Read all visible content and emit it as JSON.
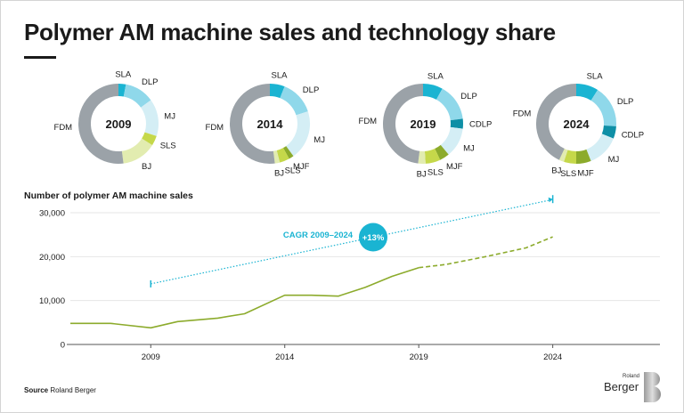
{
  "title": "Polymer AM machine sales and technology share",
  "source_label": "Source",
  "source_text": "Roland Berger",
  "logo": {
    "small": "Roland",
    "large": "Berger",
    "mark": "B"
  },
  "colors": {
    "SLA": "#1ab4d2",
    "DLP": "#8fd8ea",
    "CDLP": "#0e8fa6",
    "MJ": "#d4eef5",
    "MJF": "#8cab2c",
    "SLS": "#c5d84a",
    "BJ": "#e2ecb0",
    "FDM": "#9ba2a8",
    "line": "#8cab2c",
    "cagr": "#1ab4d2",
    "axis": "#555555",
    "grid": "#e6e6e6"
  },
  "chart_data": [
    {
      "type": "pie",
      "label": "2009",
      "segments": [
        {
          "name": "SLA",
          "value": 3
        },
        {
          "name": "DLP",
          "value": 12
        },
        {
          "name": "MJ",
          "value": 15
        },
        {
          "name": "SLS",
          "value": 4
        },
        {
          "name": "BJ",
          "value": 14
        },
        {
          "name": "FDM",
          "value": 52
        }
      ]
    },
    {
      "type": "pie",
      "label": "2014",
      "segments": [
        {
          "name": "SLA",
          "value": 6
        },
        {
          "name": "DLP",
          "value": 14
        },
        {
          "name": "MJ",
          "value": 20
        },
        {
          "name": "MJF",
          "value": 2
        },
        {
          "name": "SLS",
          "value": 4
        },
        {
          "name": "BJ",
          "value": 2
        },
        {
          "name": "FDM",
          "value": 52
        }
      ]
    },
    {
      "type": "pie",
      "label": "2019",
      "segments": [
        {
          "name": "SLA",
          "value": 8
        },
        {
          "name": "DLP",
          "value": 15
        },
        {
          "name": "CDLP",
          "value": 4
        },
        {
          "name": "MJ",
          "value": 12
        },
        {
          "name": "MJF",
          "value": 4
        },
        {
          "name": "SLS",
          "value": 6
        },
        {
          "name": "BJ",
          "value": 3
        },
        {
          "name": "FDM",
          "value": 48
        }
      ]
    },
    {
      "type": "pie",
      "label": "2024",
      "segments": [
        {
          "name": "SLA",
          "value": 9
        },
        {
          "name": "DLP",
          "value": 17
        },
        {
          "name": "CDLP",
          "value": 5
        },
        {
          "name": "MJ",
          "value": 13
        },
        {
          "name": "MJF",
          "value": 6
        },
        {
          "name": "SLS",
          "value": 5
        },
        {
          "name": "BJ",
          "value": 2
        },
        {
          "name": "FDM",
          "value": 43
        }
      ]
    },
    {
      "type": "line",
      "title": "Number of polymer AM machine sales",
      "xlim": [
        2006,
        2028
      ],
      "ylim": [
        0,
        30000
      ],
      "xticks": [
        "2009",
        "2014",
        "2019",
        "2024"
      ],
      "yticks": [
        "0",
        "10,000",
        "20,000",
        "30,000"
      ],
      "series": [
        {
          "style": "solid",
          "x": [
            2006,
            2007.5,
            2009,
            2010,
            2011.5,
            2012.5,
            2014,
            2015,
            2016,
            2017,
            2018,
            2019
          ],
          "y": [
            4800,
            4800,
            3800,
            5200,
            6000,
            7000,
            11200,
            11200,
            11000,
            13000,
            15500,
            17500
          ]
        },
        {
          "style": "dashed",
          "x": [
            2019,
            2020,
            2021.5,
            2023,
            2024
          ],
          "y": [
            17500,
            18200,
            20000,
            22000,
            24500
          ]
        }
      ],
      "cagr": {
        "label": "CAGR 2009–2024",
        "value": "+13%",
        "x": [
          2009,
          2024
        ],
        "y": [
          13800,
          33000
        ]
      }
    }
  ]
}
